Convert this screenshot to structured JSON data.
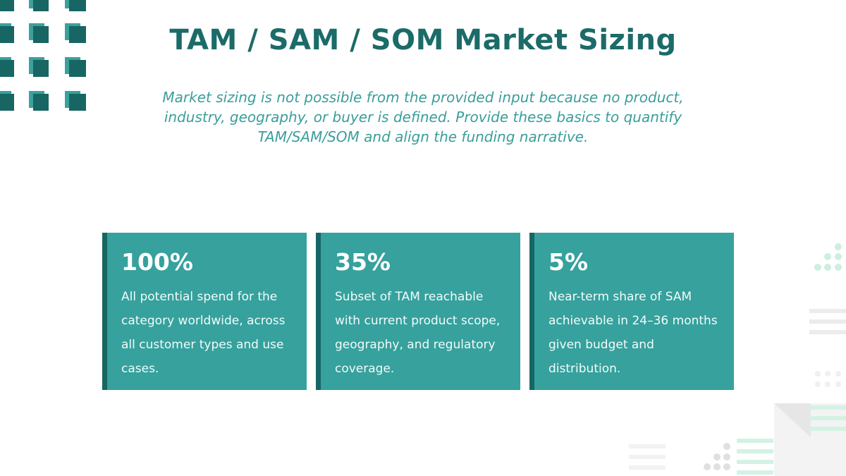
{
  "header": {
    "title": "TAM / SAM / SOM Market Sizing",
    "subtitle": "Market sizing is not possible from the provided input because no product, industry, geography, or buyer is defined. Provide these basics to quantify TAM/SAM/SOM and align the funding narrative."
  },
  "cards": [
    {
      "stat": "100%",
      "text": "All potential spend for the category worldwide, across all customer types and use cases."
    },
    {
      "stat": "35%",
      "text": "Subset of TAM reachable with current product scope, geography, and regulatory coverage."
    },
    {
      "stat": "5%",
      "text": "Near-term share of SAM achievable in 24–36 months given budget and distribution."
    }
  ]
}
